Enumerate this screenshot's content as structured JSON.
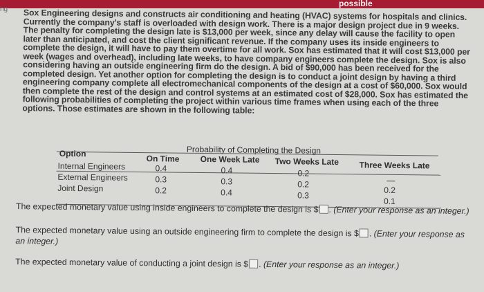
{
  "top_banner": "possible",
  "edge_label": "ng",
  "problem_text": "Sox Engineering designs and constructs air conditioning and heating (HVAC) systems for hospitals and clinics. Currently the company's staff is overloaded with design work. There is a major design project due in 9 weeks. The penalty for completing the design late is $13,000 per week, since any delay will cause the facility to open later than anticipated, and cost the client significant revenue. If the company uses its inside engineers to complete the design, it will have to pay them overtime for all work. Sox has estimated that it will cost $13,000 per week (wages and overhead), including late weeks, to have company engineers complete the design. Sox is also considering having an outside engineering firm do the design. A bid of $90,000 has been received for the completed design. Yet another option for completing the design is to conduct a joint design by having a third engineering company complete all electromechanical components of the design at a cost of $60,000. Sox would then complete the rest of the design and control systems at an estimated cost of $28,000. Sox has estimated the following probabilities of completing the project within various time frames when using each of the three options. Those estimates are shown in the following table:",
  "table": {
    "title": "Probability of Completing the Design",
    "headers": {
      "option": "Option",
      "on_time": "On Time",
      "one_week": "One Week Late",
      "two_weeks": "Two Weeks Late",
      "three_weeks": "Three Weeks Late"
    },
    "rows": [
      {
        "label": "Internal Engineers",
        "on_time": "0.4",
        "one_week": "0.4",
        "two_weeks": "0.2",
        "three_weeks": "—"
      },
      {
        "label": "External Engineers",
        "on_time": "0.3",
        "one_week": "0.3",
        "two_weeks": "0.2",
        "three_weeks": "0.2"
      },
      {
        "label": "Joint Design",
        "on_time": "0.2",
        "one_week": "0.4",
        "two_weeks": "0.3",
        "three_weeks": "0.1"
      }
    ]
  },
  "questions": [
    {
      "before": "The expected monetary value using inside engineers to complete the design is $",
      "after": ".",
      "hint": "(Enter your response as an integer.)"
    },
    {
      "before": "The expected monetary value using an outside engineering firm to complete the design is $",
      "after": ".",
      "hint": "(Enter your response as an integer.)"
    },
    {
      "before": "The expected monetary value of conducting a joint design is $",
      "after": ".",
      "hint": "(Enter your response as an integer.)"
    }
  ]
}
